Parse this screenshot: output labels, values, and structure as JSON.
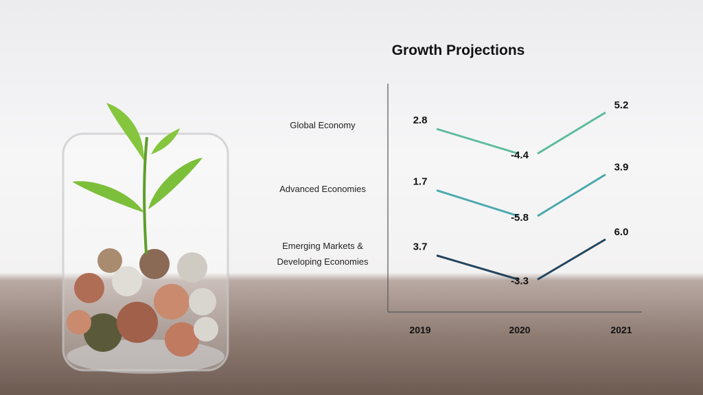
{
  "chart_data": {
    "type": "line",
    "title": "Growth Projections",
    "categories": [
      "2019",
      "2020",
      "2021"
    ],
    "series": [
      {
        "name": "Global Economy",
        "values": [
          2.8,
          -4.4,
          5.2
        ],
        "color": "#5dbb9c"
      },
      {
        "name": "Advanced Economies",
        "values": [
          1.7,
          -5.8,
          3.9
        ],
        "color": "#4aa8ac"
      },
      {
        "name": "Emerging Markets & Developing Economies",
        "name_lines": [
          "Emerging Markets &",
          "Developing Economies"
        ],
        "values": [
          3.7,
          -3.3,
          6.0
        ],
        "color": "#23455e"
      }
    ],
    "value_labels": [
      [
        "2.8",
        "-4.4",
        "5.2"
      ],
      [
        "1.7",
        "-5.8",
        "3.9"
      ],
      [
        "3.7",
        "-3.3",
        "6.0"
      ]
    ],
    "xlabel": "",
    "ylabel": "",
    "grid": false,
    "legend": "left-row-labels"
  }
}
